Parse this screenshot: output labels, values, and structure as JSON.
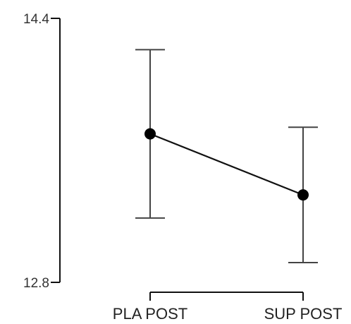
{
  "chart_data": {
    "type": "line",
    "title": "",
    "xlabel": "",
    "ylabel": "",
    "categories": [
      "PLA POST",
      "SUP POST"
    ],
    "y_ticks": [
      "14.4",
      "12.8"
    ],
    "ylim": [
      12.8,
      14.4
    ],
    "series": [
      {
        "values": [
          13.7,
          13.33
        ],
        "error_low": [
          13.19,
          12.92
        ],
        "error_high": [
          14.21,
          13.74
        ]
      }
    ],
    "grid": false,
    "legend": "none",
    "colors": {
      "line": "#111111",
      "marker": "#000000",
      "error_bar": "#444444"
    }
  }
}
